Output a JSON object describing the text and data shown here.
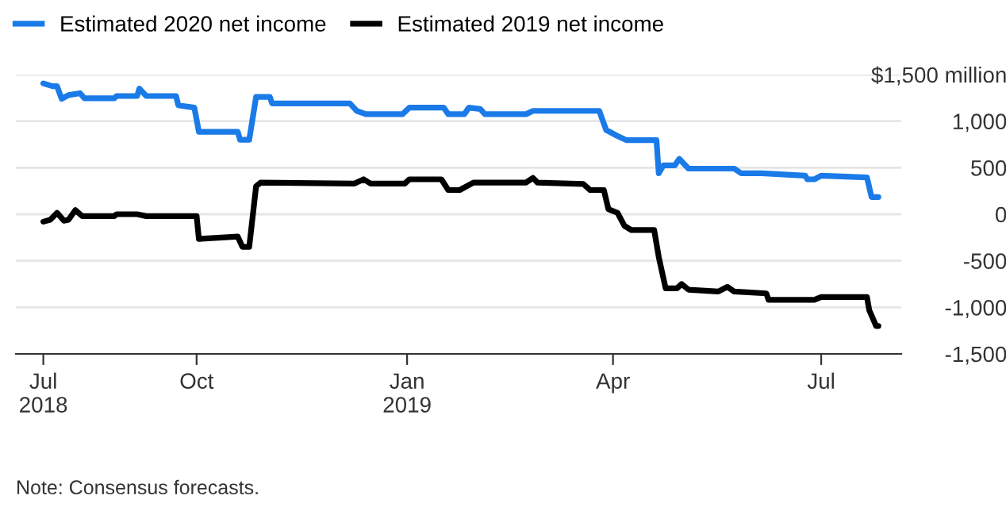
{
  "chart_data": {
    "type": "line",
    "series": [
      {
        "name": "Estimated 2020 net income",
        "color": "#1a7be8",
        "x": [
          "2018-07-26",
          "2018-07-30",
          "2018-08-01",
          "2018-08-03",
          "2018-08-06",
          "2018-08-11",
          "2018-08-13",
          "2018-08-26",
          "2018-08-27",
          "2018-09-05",
          "2018-09-06",
          "2018-09-09",
          "2018-09-22",
          "2018-09-23",
          "2018-09-30",
          "2018-10-02",
          "2018-10-19",
          "2018-10-20",
          "2018-10-24",
          "2018-10-27",
          "2018-11-02",
          "2018-11-03",
          "2018-12-07",
          "2018-12-10",
          "2018-12-14",
          "2018-12-30",
          "2019-01-02",
          "2019-01-17",
          "2019-01-19",
          "2019-01-26",
          "2019-01-28",
          "2019-02-02",
          "2019-02-04",
          "2019-02-22",
          "2019-02-25",
          "2019-03-26",
          "2019-03-29",
          "2019-04-03",
          "2019-04-07",
          "2019-04-20",
          "2019-04-21",
          "2019-04-23",
          "2019-04-28",
          "2019-04-30",
          "2019-05-04",
          "2019-05-24",
          "2019-05-27",
          "2019-06-05",
          "2019-06-24",
          "2019-06-25",
          "2019-06-28",
          "2019-07-01",
          "2019-07-21",
          "2019-07-23",
          "2019-07-26"
        ],
        "values": [
          1405,
          1375,
          1375,
          1240,
          1280,
          1300,
          1245,
          1245,
          1270,
          1270,
          1350,
          1270,
          1270,
          1170,
          1145,
          885,
          885,
          800,
          800,
          1260,
          1260,
          1190,
          1190,
          1110,
          1075,
          1075,
          1145,
          1145,
          1075,
          1075,
          1145,
          1130,
          1075,
          1075,
          1110,
          1110,
          905,
          840,
          795,
          795,
          440,
          525,
          525,
          595,
          490,
          490,
          440,
          440,
          415,
          375,
          375,
          415,
          395,
          185,
          185
        ]
      },
      {
        "name": "Estimated 2019 net income",
        "color": "#000000",
        "x": [
          "2018-07-26",
          "2018-07-29",
          "2018-08-01",
          "2018-08-04",
          "2018-08-06",
          "2018-08-09",
          "2018-08-12",
          "2018-08-26",
          "2018-08-27",
          "2018-09-05",
          "2018-09-09",
          "2018-10-01",
          "2018-10-02",
          "2018-10-19",
          "2018-10-21",
          "2018-10-24",
          "2018-10-27",
          "2018-10-29",
          "2018-12-09",
          "2018-12-13",
          "2018-12-16",
          "2018-12-31",
          "2019-01-02",
          "2019-01-16",
          "2019-01-19",
          "2019-01-24",
          "2019-01-30",
          "2019-02-22",
          "2019-02-25",
          "2019-02-27",
          "2019-03-19",
          "2019-03-22",
          "2019-03-28",
          "2019-03-30",
          "2019-04-03",
          "2019-04-06",
          "2019-04-09",
          "2019-04-19",
          "2019-04-21",
          "2019-04-24",
          "2019-04-29",
          "2019-05-01",
          "2019-05-04",
          "2019-05-17",
          "2019-05-21",
          "2019-05-24",
          "2019-06-07",
          "2019-06-08",
          "2019-06-28",
          "2019-07-01",
          "2019-07-21",
          "2019-07-22",
          "2019-07-25",
          "2019-07-26"
        ],
        "values": [
          -80,
          -60,
          15,
          -70,
          -60,
          45,
          -20,
          -20,
          0,
          0,
          -20,
          -20,
          -265,
          -240,
          -350,
          -350,
          300,
          340,
          330,
          375,
          330,
          330,
          375,
          375,
          260,
          260,
          340,
          340,
          390,
          340,
          325,
          260,
          260,
          55,
          15,
          -125,
          -170,
          -170,
          -460,
          -795,
          -795,
          -750,
          -810,
          -830,
          -780,
          -830,
          -850,
          -920,
          -920,
          -890,
          -890,
          -1030,
          -1200,
          -1200
        ]
      }
    ],
    "xlim": [
      "2018-07-14",
      "2019-08-05"
    ],
    "xticks": [
      {
        "value": "2018-07-26",
        "label": "Jul\n2018"
      },
      {
        "value": "2018-10-01",
        "label": "Oct"
      },
      {
        "value": "2019-01-01",
        "label": "Jan\n2019"
      },
      {
        "value": "2019-04-01",
        "label": "Apr"
      },
      {
        "value": "2019-07-01",
        "label": "Jul"
      }
    ],
    "ylim": [
      -1500,
      1500
    ],
    "yticks": [
      {
        "value": 1500,
        "label": "$1,500 million"
      },
      {
        "value": 1000,
        "label": "1,000"
      },
      {
        "value": 500,
        "label": "500"
      },
      0,
      {
        "value": -500,
        "label": "-500"
      },
      {
        "value": -1000,
        "label": "-1,000"
      },
      {
        "value": -1500,
        "label": "-1,500"
      }
    ],
    "grid": "y",
    "legend": "top left",
    "annotations": [
      "Note: Consensus forecasts."
    ]
  }
}
